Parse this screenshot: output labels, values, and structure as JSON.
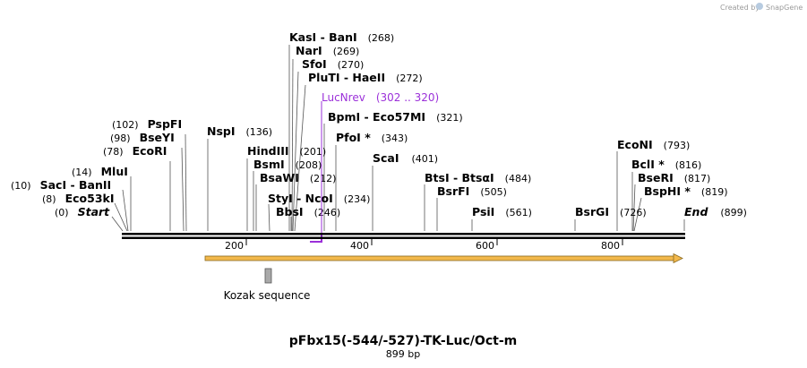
{
  "header": {
    "credit": "Created by",
    "brand": "SnapGene"
  },
  "map": {
    "title": "pFbx15(-544/-527)-TK-Luc/Oct-m",
    "length_label": "899 bp",
    "length": 899
  },
  "ticks": [
    {
      "value": 200,
      "label": "200"
    },
    {
      "value": 400,
      "label": "400"
    },
    {
      "value": 600,
      "label": "600"
    },
    {
      "value": 800,
      "label": "800"
    }
  ],
  "sites": [
    {
      "id": "start",
      "name": "Start",
      "pos": "(0)",
      "italic": true
    },
    {
      "id": "eco53ki",
      "name": "Eco53kI",
      "pos": "(8)"
    },
    {
      "id": "saci",
      "name": "SacI  - BanII",
      "pos": "(10)"
    },
    {
      "id": "mlui",
      "name": "MluI",
      "pos": "(14)"
    },
    {
      "id": "ecori",
      "name": "EcoRI",
      "pos": "(78)"
    },
    {
      "id": "bseyi",
      "name": "BseYI",
      "pos": "(98)"
    },
    {
      "id": "pspfi",
      "name": "PspFI",
      "pos": "(102)"
    },
    {
      "id": "nspi",
      "name": "NspI",
      "pos": "(136)"
    },
    {
      "id": "hindiii",
      "name": "HindIII",
      "pos": "(201)"
    },
    {
      "id": "bsmi",
      "name": "BsmI",
      "pos": "(208)"
    },
    {
      "id": "bsawi",
      "name": "BsaWI",
      "pos": "(212)"
    },
    {
      "id": "styi",
      "name": "StyI  - NcoI",
      "pos": "(234)"
    },
    {
      "id": "bbsi",
      "name": "BbsI",
      "pos": "(246)"
    },
    {
      "id": "kasi",
      "name": "KasI  - BanI",
      "pos": "(268)"
    },
    {
      "id": "nari",
      "name": "NarI",
      "pos": "(269)"
    },
    {
      "id": "sfoi",
      "name": "SfoI",
      "pos": "(270)"
    },
    {
      "id": "pluti",
      "name": "PluTI  - HaeII",
      "pos": "(272)"
    },
    {
      "id": "bpmi",
      "name": "BpmI  - Eco57MI",
      "pos": "(321)"
    },
    {
      "id": "pfoi",
      "name": "PfoI *",
      "pos": "(343)"
    },
    {
      "id": "scai",
      "name": "ScaI",
      "pos": "(401)"
    },
    {
      "id": "btsi",
      "name": "BtsI  - BtsαI",
      "pos": "(484)"
    },
    {
      "id": "bsrfi",
      "name": "BsrFI",
      "pos": "(505)"
    },
    {
      "id": "psii",
      "name": "PsiI",
      "pos": "(561)"
    },
    {
      "id": "bsrgi",
      "name": "BsrGI",
      "pos": "(726)"
    },
    {
      "id": "econi",
      "name": "EcoNI",
      "pos": "(793)"
    },
    {
      "id": "bcli",
      "name": "BclI *",
      "pos": "(816)"
    },
    {
      "id": "bseri",
      "name": "BseRI",
      "pos": "(817)"
    },
    {
      "id": "bsphi",
      "name": "BspHI *",
      "pos": "(819)"
    },
    {
      "id": "end",
      "name": "End",
      "pos": "(899)",
      "italic": true
    }
  ],
  "primer": {
    "name": "LucNrev",
    "range": "(302 .. 320)",
    "start": 302,
    "end": 320,
    "color": "#9b30d9"
  },
  "features": [
    {
      "id": "kozak",
      "name": "Kozak sequence",
      "start": 227,
      "end": 237
    }
  ],
  "orf": {
    "start": 134,
    "end": 899,
    "color": "#f2b84b"
  }
}
